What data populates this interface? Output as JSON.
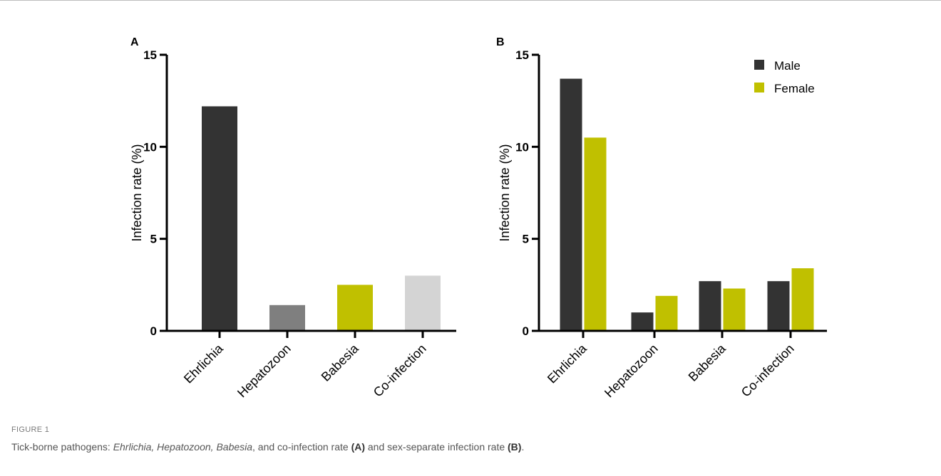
{
  "figure": {
    "label": "FIGURE 1",
    "caption": {
      "prefix": "Tick-borne pathogens: ",
      "italic_1": "Ehrlichia, Hepatozoon, Babesia",
      "mid_1": ", and co-infection rate ",
      "bold_1": "(A)",
      "mid_2": " and sex-separate infection rate ",
      "bold_2": "(B)",
      "suffix": "."
    }
  },
  "colors": {
    "dark": "#333333",
    "gray": "#7f7f7f",
    "olive": "#c0c000",
    "light": "#d4d4d4"
  },
  "chart_data": [
    {
      "panel": "A",
      "type": "bar",
      "categories": [
        "Ehrlichia",
        "Hepatozoon",
        "Babesia",
        "Co-infection"
      ],
      "values": [
        12.2,
        1.4,
        2.5,
        3.0
      ],
      "bar_colors": [
        "#333333",
        "#7f7f7f",
        "#c0c000",
        "#d4d4d4"
      ],
      "ylabel": "Infection rate (%)",
      "xlabel": "",
      "ylim": [
        0,
        15
      ],
      "yticks": [
        0,
        5,
        10,
        15
      ],
      "grid": false
    },
    {
      "panel": "B",
      "type": "bar",
      "categories": [
        "Ehrlichia",
        "Hepatozoon",
        "Babesia",
        "Co-infection"
      ],
      "series": [
        {
          "name": "Male",
          "color": "#333333",
          "values": [
            13.7,
            1.0,
            2.7,
            2.7
          ]
        },
        {
          "name": "Female",
          "color": "#c0c000",
          "values": [
            10.5,
            1.9,
            2.3,
            3.4
          ]
        }
      ],
      "ylabel": "Infection rate (%)",
      "xlabel": "",
      "ylim": [
        0,
        15
      ],
      "yticks": [
        0,
        5,
        10,
        15
      ],
      "legend": "top-right",
      "grid": false
    }
  ]
}
